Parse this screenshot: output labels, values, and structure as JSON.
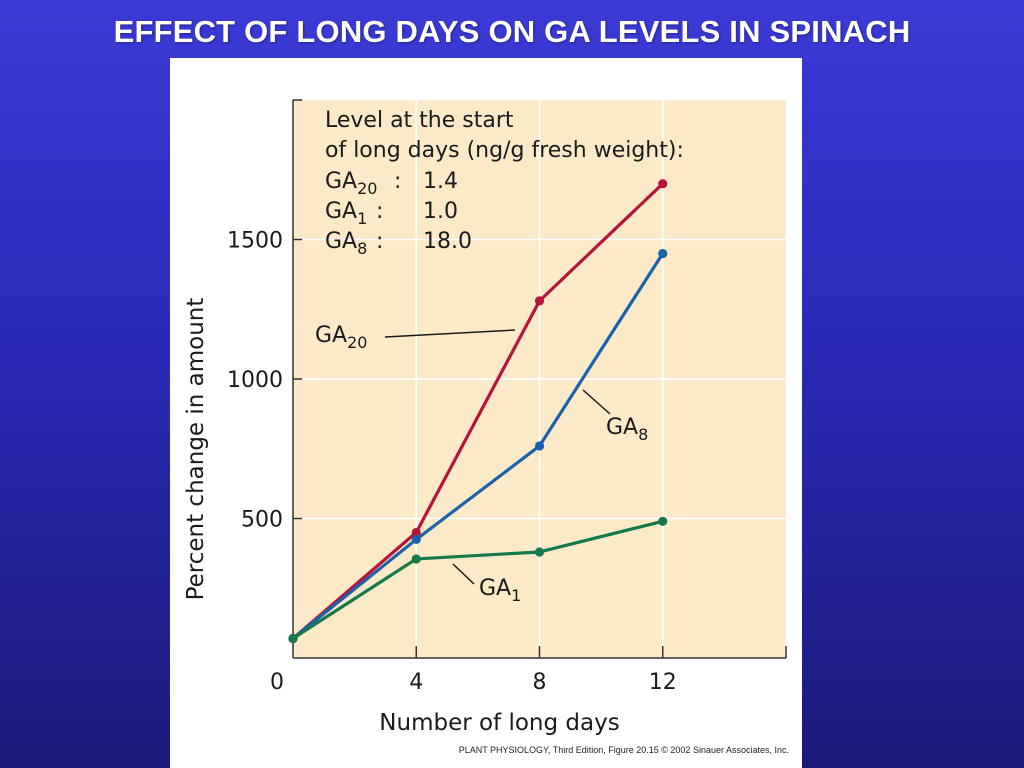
{
  "slide": {
    "title": "EFFECT OF LONG DAYS ON GA LEVELS IN SPINACH"
  },
  "colors": {
    "background_top": "#3a3ad6",
    "background_bottom": "#1a1a7a",
    "plot_background": "#fbe9c8",
    "GA20": "#b5153b",
    "GA8": "#1b62aa",
    "GA1": "#16794a"
  },
  "figure": {
    "caption": "PLANT PHYSIOLOGY, Third Edition, Figure 20.15 © 2002 Sinauer Associates, Inc."
  },
  "chart_data": {
    "type": "line",
    "title": "",
    "xlabel": "Number of long days",
    "ylabel": "Percent change in amount",
    "xlim": [
      0,
      16
    ],
    "ylim": [
      0,
      2000
    ],
    "x_ticks": [
      0,
      4,
      8,
      12
    ],
    "y_ticks": [
      500,
      1000,
      1500
    ],
    "grid": true,
    "legend_box": {
      "heading_line1": "Level at the start",
      "heading_line2": "of long days (ng/g fresh weight):",
      "entries": [
        {
          "name": "GA",
          "sub": "20",
          "value": "1.4"
        },
        {
          "name": "GA",
          "sub": "1",
          "value": "1.0"
        },
        {
          "name": "GA",
          "sub": "8",
          "value": "18.0"
        }
      ]
    },
    "series": [
      {
        "name": "GA20",
        "label_main": "GA",
        "label_sub": "20",
        "color": "#b5153b",
        "x": [
          0,
          4,
          8,
          12
        ],
        "y": [
          70,
          450,
          1280,
          1700
        ]
      },
      {
        "name": "GA8",
        "label_main": "GA",
        "label_sub": "8",
        "color": "#1b62aa",
        "x": [
          0,
          4,
          8,
          12
        ],
        "y": [
          70,
          425,
          760,
          1450
        ]
      },
      {
        "name": "GA1",
        "label_main": "GA",
        "label_sub": "1",
        "color": "#16794a",
        "x": [
          0,
          4,
          8,
          12
        ],
        "y": [
          70,
          355,
          380,
          490
        ]
      }
    ]
  }
}
